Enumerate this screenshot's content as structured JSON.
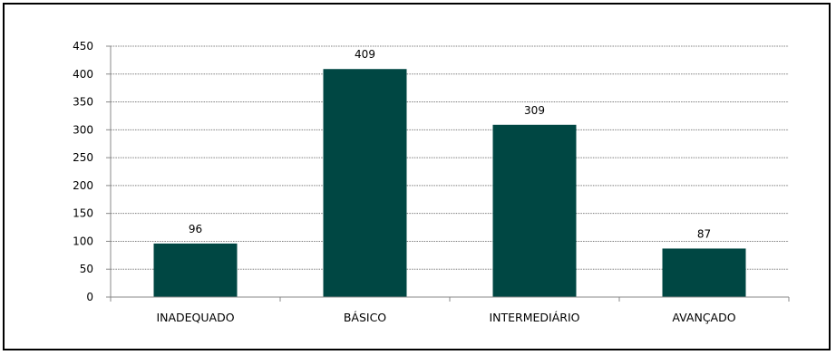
{
  "chart_data": {
    "type": "bar",
    "categories": [
      "INADEQUADO",
      "BÁSICO",
      "INTERMEDIÁRIO",
      "AVANÇADO"
    ],
    "values": [
      96,
      409,
      309,
      87
    ],
    "data_labels": [
      "96",
      "409",
      "309",
      "87"
    ],
    "yticks": [
      0,
      50,
      100,
      150,
      200,
      250,
      300,
      350,
      400,
      450
    ],
    "ylim": [
      0,
      450
    ],
    "grid": true,
    "legend": false,
    "colors": {
      "bar": "#004743",
      "grid": "#7f7f7f",
      "axis": "#888888"
    }
  }
}
